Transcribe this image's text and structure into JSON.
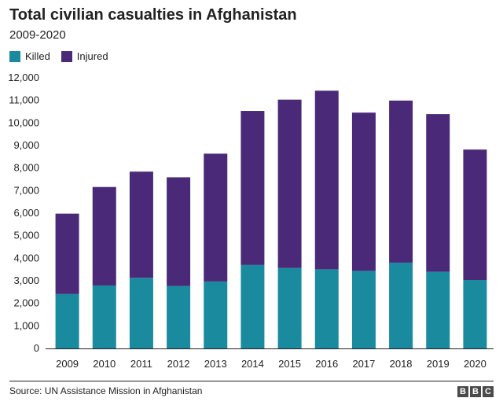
{
  "header": {
    "title": "Total civilian casualties in Afghanistan",
    "subtitle": "2009-2020"
  },
  "legend": [
    {
      "label": "Killed",
      "color": "#1a8a9e"
    },
    {
      "label": "Injured",
      "color": "#4a2a78"
    }
  ],
  "footer": {
    "source": "Source: UN Assistance Mission in Afghanistan",
    "logo_letters": [
      "B",
      "B",
      "C"
    ]
  },
  "chart_data": {
    "type": "bar",
    "stacked": true,
    "title": "Total civilian casualties in Afghanistan",
    "subtitle": "2009-2020",
    "categories": [
      "2009",
      "2010",
      "2011",
      "2012",
      "2013",
      "2014",
      "2015",
      "2016",
      "2017",
      "2018",
      "2019",
      "2020"
    ],
    "series": [
      {
        "name": "Killed",
        "color": "#1a8a9e",
        "values": [
          2412,
          2792,
          3133,
          2769,
          2969,
          3701,
          3565,
          3510,
          3440,
          3804,
          3403,
          3035
        ]
      },
      {
        "name": "Injured",
        "color": "#4a2a78",
        "values": [
          3566,
          4368,
          4709,
          4821,
          5669,
          6833,
          7470,
          7920,
          7019,
          7189,
          6989,
          5785
        ]
      }
    ],
    "ylim": [
      0,
      12000
    ],
    "yticks": [
      0,
      1000,
      2000,
      3000,
      4000,
      5000,
      6000,
      7000,
      8000,
      9000,
      10000,
      11000,
      12000
    ],
    "ytick_labels": [
      "0",
      "1,000",
      "2,000",
      "3,000",
      "4,000",
      "5,000",
      "6,000",
      "7,000",
      "8,000",
      "9,000",
      "10,000",
      "11,000",
      "12,000"
    ],
    "xlabel": "",
    "ylabel": "",
    "grid": false,
    "legend_position": "top-left"
  }
}
